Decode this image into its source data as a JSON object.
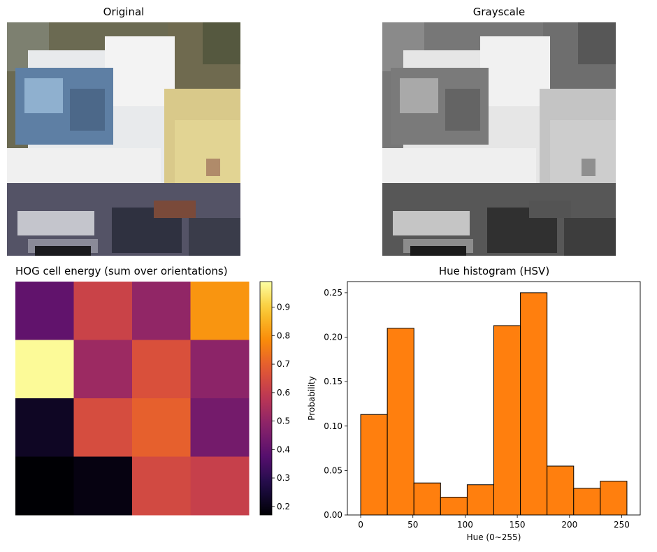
{
  "panels": {
    "original": {
      "title": "Original"
    },
    "grayscale": {
      "title": "Grayscale"
    }
  },
  "image_description": "Pixelated 32x32 photo of a white truck cab with a yellow dump body",
  "chart_data": [
    {
      "type": "heatmap",
      "title": "HOG cell energy (sum over orientations)",
      "colormap": "inferno",
      "grid": [
        [
          0.4,
          0.62,
          0.5,
          0.8
        ],
        [
          0.98,
          0.52,
          0.66,
          0.49
        ],
        [
          0.22,
          0.65,
          0.7,
          0.44
        ],
        [
          0.17,
          0.19,
          0.64,
          0.61
        ]
      ],
      "colorbar": {
        "range": [
          0.17,
          0.99
        ],
        "ticks": [
          "0.2",
          "0.3",
          "0.4",
          "0.5",
          "0.6",
          "0.7",
          "0.8",
          "0.9"
        ],
        "tick_values": [
          0.2,
          0.3,
          0.4,
          0.5,
          0.6,
          0.7,
          0.8,
          0.9
        ]
      }
    },
    {
      "type": "bar",
      "title": "Hue histogram (HSV)",
      "xlabel": "Hue (0~255)",
      "ylabel": "Probability",
      "bin_edges": [
        0,
        25.5,
        51,
        76.5,
        102,
        127.5,
        153,
        178.5,
        204,
        229.5,
        255
      ],
      "values": [
        0.113,
        0.21,
        0.036,
        0.02,
        0.034,
        0.213,
        0.25,
        0.055,
        0.03,
        0.038
      ],
      "xlim": [
        -12.75,
        267.75
      ],
      "ylim": [
        0,
        0.2625
      ],
      "xticks": [
        0,
        50,
        100,
        150,
        200,
        250
      ],
      "xtick_labels": [
        "0",
        "50",
        "100",
        "150",
        "200",
        "250"
      ],
      "yticks": [
        0.0,
        0.05,
        0.1,
        0.15,
        0.2,
        0.25
      ],
      "ytick_labels": [
        "0.00",
        "0.05",
        "0.10",
        "0.15",
        "0.20",
        "0.25"
      ],
      "bar_color": "#ff7f0e",
      "edge_color": "#000000"
    }
  ]
}
